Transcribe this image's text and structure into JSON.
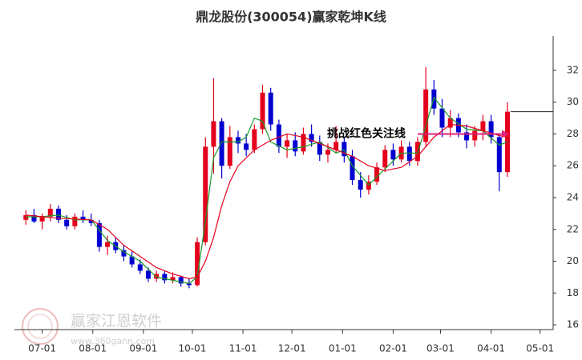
{
  "chart_data": {
    "type": "candlestick",
    "title": "鼎龙股份(300054)赢家乾坤K线",
    "x": [
      20,
      25,
      30,
      35,
      40,
      45,
      50,
      55,
      60,
      65,
      70,
      75,
      80,
      85,
      90,
      95,
      100,
      105,
      110,
      115,
      120,
      125,
      130,
      135,
      140,
      145,
      150,
      155,
      160,
      165,
      170,
      175,
      180,
      185,
      190,
      195,
      200,
      205,
      210,
      215,
      220,
      225,
      230,
      235,
      240,
      245,
      250,
      255,
      260,
      265,
      270,
      275,
      280,
      285,
      290,
      295,
      300,
      305,
      310,
      315
    ],
    "open": [
      22.6,
      22.9,
      22.5,
      22.8,
      23.3,
      22.6,
      22.2,
      22.8,
      22.6,
      22.4,
      20.9,
      21.2,
      20.7,
      20.3,
      19.8,
      19.4,
      18.9,
      19.2,
      18.8,
      19.0,
      18.6,
      18.5,
      21.2,
      27.2,
      28.8,
      26.0,
      27.8,
      27.4,
      27.0,
      28.3,
      30.6,
      28.6,
      27.2,
      27.6,
      26.9,
      28.0,
      27.5,
      26.7,
      27.0,
      27.5,
      26.6,
      25.1,
      24.5,
      25.0,
      25.9,
      27.0,
      26.4,
      27.2,
      26.3,
      27.5,
      30.8,
      29.6,
      28.4,
      29.0,
      28.1,
      27.6,
      28.2,
      28.8,
      27.8,
      25.6
    ],
    "high": [
      23.2,
      23.3,
      23.0,
      23.6,
      23.5,
      22.9,
      23.0,
      23.2,
      23.0,
      22.6,
      21.6,
      21.5,
      21.0,
      20.6,
      20.1,
      19.6,
      19.4,
      19.4,
      19.3,
      19.1,
      18.9,
      21.5,
      27.8,
      31.5,
      29.0,
      28.5,
      28.2,
      28.0,
      28.6,
      31.1,
      30.9,
      28.9,
      28.0,
      28.1,
      28.4,
      28.6,
      27.9,
      27.4,
      28.5,
      27.8,
      27.0,
      25.6,
      25.4,
      26.2,
      27.3,
      27.4,
      27.6,
      27.5,
      27.8,
      32.2,
      31.4,
      30.2,
      29.5,
      29.3,
      28.6,
      28.5,
      29.2,
      29.2,
      28.0,
      30.0
    ],
    "low": [
      22.3,
      22.4,
      22.0,
      22.5,
      22.4,
      22.0,
      22.0,
      22.4,
      22.2,
      20.6,
      20.4,
      20.5,
      20.0,
      19.6,
      19.2,
      18.7,
      18.7,
      18.6,
      18.6,
      18.4,
      18.3,
      18.4,
      21.0,
      25.5,
      25.2,
      25.8,
      26.8,
      26.6,
      26.8,
      28.0,
      28.2,
      26.8,
      26.5,
      26.6,
      26.7,
      27.2,
      26.3,
      26.2,
      26.8,
      26.2,
      24.8,
      24.0,
      24.2,
      24.8,
      25.6,
      26.0,
      26.2,
      26.0,
      26.0,
      27.2,
      29.2,
      27.8,
      27.8,
      27.8,
      27.1,
      27.2,
      27.6,
      27.4,
      24.4,
      25.3
    ],
    "close": [
      22.9,
      22.5,
      22.8,
      23.3,
      22.6,
      22.2,
      22.8,
      22.6,
      22.4,
      20.9,
      21.2,
      20.7,
      20.3,
      19.8,
      19.4,
      18.9,
      19.2,
      18.8,
      19.0,
      18.6,
      18.5,
      21.2,
      27.2,
      28.8,
      26.0,
      27.8,
      27.4,
      27.0,
      28.3,
      30.6,
      28.6,
      27.2,
      27.6,
      26.9,
      28.0,
      27.5,
      26.7,
      27.0,
      27.5,
      26.6,
      25.1,
      24.5,
      25.0,
      25.9,
      27.0,
      26.4,
      27.2,
      26.3,
      27.5,
      30.8,
      29.6,
      28.4,
      29.0,
      28.1,
      27.6,
      28.2,
      28.8,
      27.8,
      25.6,
      29.4
    ],
    "up_color": "#e5001c",
    "down_color": "#0000d0",
    "lines": [
      {
        "color": "#1a9a2a",
        "x": [
          20,
          30,
          40,
          50,
          60,
          70,
          80,
          90,
          100,
          110,
          120,
          125,
          130,
          135,
          140,
          150,
          155,
          160,
          165,
          170,
          180,
          190,
          200,
          210,
          215,
          220,
          230,
          240,
          250,
          260,
          265,
          270,
          280,
          290,
          300,
          310,
          315
        ],
        "values": [
          22.8,
          22.8,
          22.9,
          22.6,
          22.6,
          21.3,
          20.6,
          20.0,
          19.0,
          18.8,
          18.6,
          19.0,
          22.5,
          26.5,
          27.5,
          27.5,
          27.8,
          29.0,
          28.8,
          27.5,
          27.0,
          27.2,
          27.5,
          26.8,
          27.0,
          26.0,
          24.8,
          25.8,
          26.8,
          26.8,
          28.5,
          30.3,
          29.0,
          28.3,
          28.2,
          27.3,
          27.5
        ]
      },
      {
        "color": "#e5001c",
        "x": [
          20,
          40,
          60,
          70,
          80,
          90,
          100,
          110,
          120,
          125,
          130,
          135,
          140,
          145,
          150,
          160,
          170,
          180,
          190,
          200,
          210,
          220,
          230,
          240,
          250,
          260,
          270,
          280,
          290,
          300,
          310,
          315
        ],
        "values": [
          22.9,
          22.7,
          22.6,
          22.0,
          21.0,
          20.3,
          19.6,
          19.2,
          18.9,
          19.0,
          20.0,
          21.5,
          23.5,
          25.0,
          26.0,
          27.0,
          27.6,
          28.0,
          27.8,
          27.4,
          27.0,
          26.6,
          26.0,
          25.7,
          25.9,
          26.6,
          27.8,
          28.6,
          28.5,
          28.2,
          27.9,
          27.8
        ]
      }
    ],
    "ref_line": 29.4,
    "annotation": {
      "text": "挑战红色关注线",
      "x": 316,
      "y": 28.0
    },
    "xlim": [
      13,
      343
    ],
    "ylim": [
      15.7,
      34.16
    ],
    "xticks": [
      {
        "value": 30,
        "label": "07-01"
      },
      {
        "value": 61,
        "label": "08-01"
      },
      {
        "value": 92,
        "label": "09-01"
      },
      {
        "value": 122,
        "label": "10-01"
      },
      {
        "value": 153,
        "label": "11-01"
      },
      {
        "value": 183,
        "label": "12-01"
      },
      {
        "value": 214,
        "label": "01-01"
      },
      {
        "value": 245,
        "label": "02-01"
      },
      {
        "value": 274,
        "label": "03-01"
      },
      {
        "value": 305,
        "label": "04-01"
      },
      {
        "value": 335,
        "label": "05-01"
      }
    ],
    "yticks": [
      16,
      18,
      20,
      22,
      24,
      26,
      28,
      30,
      32
    ],
    "watermark": {
      "name": "赢家江恩软件",
      "url": "www.360gann.com"
    }
  }
}
